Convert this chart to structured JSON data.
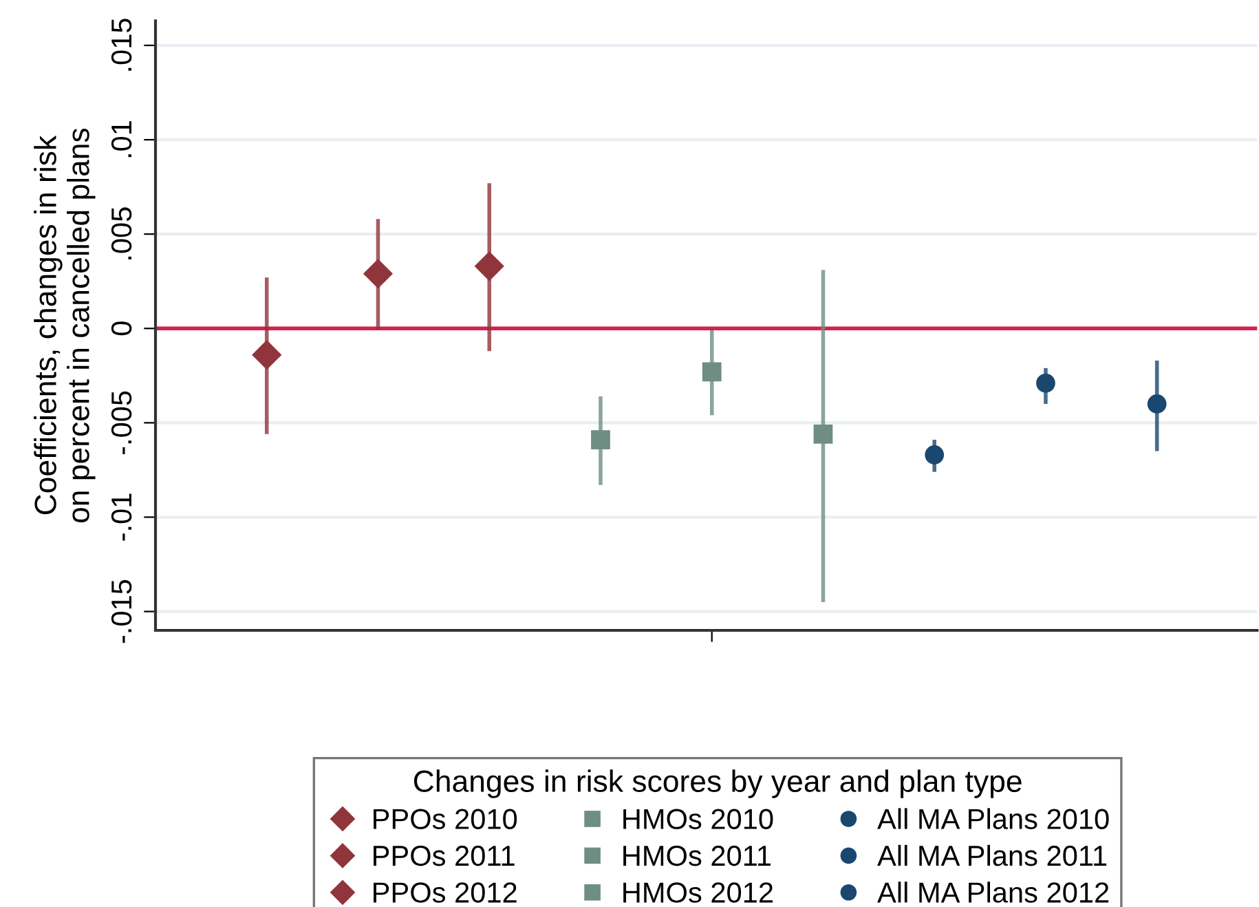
{
  "chart_data": {
    "type": "scatter",
    "ylabel": "Coefficients, changes in risk\non percent in cancelled plans",
    "legend_title": "Changes in risk scores by year and plan type",
    "categories": [
      null,
      null,
      null,
      null,
      null,
      null,
      null,
      null,
      null
    ],
    "ylim": [
      -0.016,
      0.0163
    ],
    "yticks": [
      {
        "value": -0.015,
        "label": "-.015"
      },
      {
        "value": -0.01,
        "label": "-.01"
      },
      {
        "value": -0.005,
        "label": "-.005"
      },
      0,
      {
        "value": 0.005,
        "label": ".005"
      },
      {
        "value": 0.01,
        "label": ".01"
      },
      {
        "value": 0.015,
        "label": ".015"
      }
    ],
    "grid": "y",
    "legend": "bottom",
    "ref_lines": [
      {
        "axis": "y",
        "value": 0,
        "color": "#d6204f"
      }
    ],
    "series": [
      {
        "name": "PPOs 2010",
        "color": "#90353b",
        "marker": "diamond",
        "values": [
          -0.0014,
          null,
          null,
          null,
          null,
          null,
          null,
          null,
          null
        ],
        "errors": [
          [
            -0.0056,
            0.0027
          ],
          null,
          null,
          null,
          null,
          null,
          null,
          null,
          null
        ]
      },
      {
        "name": "PPOs 2011",
        "color": "#90353b",
        "marker": "diamond",
        "values": [
          null,
          0.0029,
          null,
          null,
          null,
          null,
          null,
          null,
          null
        ],
        "errors": [
          null,
          [
            -0.0001,
            0.0058
          ],
          null,
          null,
          null,
          null,
          null,
          null,
          null
        ]
      },
      {
        "name": "PPOs 2012",
        "color": "#90353b",
        "marker": "diamond",
        "values": [
          null,
          null,
          0.0033,
          null,
          null,
          null,
          null,
          null,
          null
        ],
        "errors": [
          null,
          null,
          [
            -0.0012,
            0.0077
          ],
          null,
          null,
          null,
          null,
          null,
          null
        ]
      },
      {
        "name": "HMOs 2010",
        "color": "#6e8e84",
        "marker": "square",
        "values": [
          null,
          null,
          null,
          -0.0059,
          null,
          null,
          null,
          null,
          null
        ],
        "errors": [
          null,
          null,
          null,
          [
            -0.0083,
            -0.0036
          ],
          null,
          null,
          null,
          null,
          null
        ]
      },
      {
        "name": "HMOs 2011",
        "color": "#6e8e84",
        "marker": "square",
        "values": [
          null,
          null,
          null,
          null,
          -0.0023,
          null,
          null,
          null,
          null
        ],
        "errors": [
          null,
          null,
          null,
          null,
          [
            -0.0046,
            -0.0001
          ],
          null,
          null,
          null,
          null
        ]
      },
      {
        "name": "HMOs 2012",
        "color": "#6e8e84",
        "marker": "square",
        "values": [
          null,
          null,
          null,
          null,
          null,
          -0.0056,
          null,
          null,
          null
        ],
        "errors": [
          null,
          null,
          null,
          null,
          null,
          [
            -0.0145,
            0.0031
          ],
          null,
          null,
          null
        ]
      },
      {
        "name": "All MA Plans 2010",
        "color": "#1a476f",
        "marker": "circle",
        "values": [
          null,
          null,
          null,
          null,
          null,
          null,
          -0.0067,
          null,
          null
        ],
        "errors": [
          null,
          null,
          null,
          null,
          null,
          null,
          [
            -0.0076,
            -0.0059
          ],
          null,
          null
        ]
      },
      {
        "name": "All MA Plans 2011",
        "color": "#1a476f",
        "marker": "circle",
        "values": [
          null,
          null,
          null,
          null,
          null,
          null,
          null,
          -0.0029,
          null
        ],
        "errors": [
          null,
          null,
          null,
          null,
          null,
          null,
          null,
          [
            -0.004,
            -0.0021
          ],
          null
        ]
      },
      {
        "name": "All MA Plans 2012",
        "color": "#1a476f",
        "marker": "circle",
        "values": [
          null,
          null,
          null,
          null,
          null,
          null,
          null,
          null,
          -0.004
        ],
        "errors": [
          null,
          null,
          null,
          null,
          null,
          null,
          null,
          null,
          [
            -0.0065,
            -0.0017
          ]
        ]
      }
    ]
  }
}
